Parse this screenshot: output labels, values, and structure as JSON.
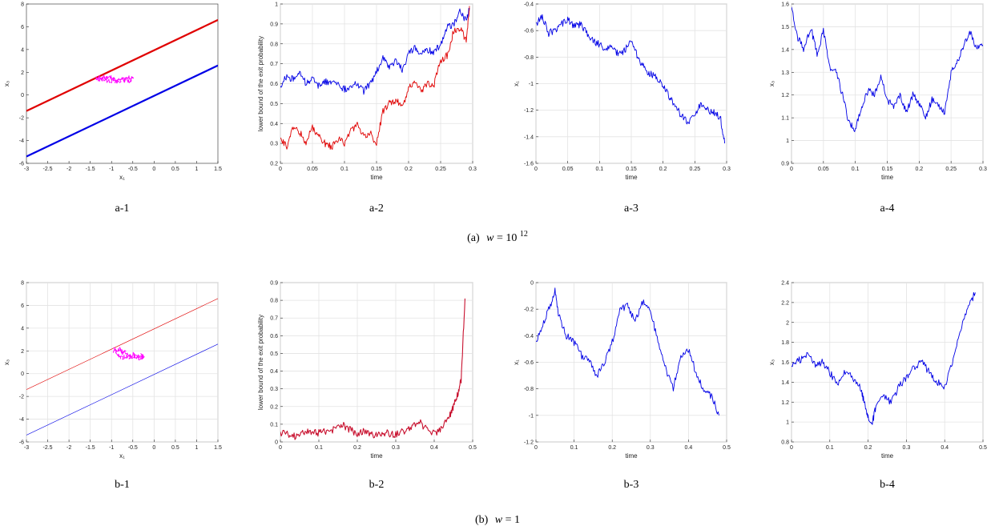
{
  "captions": {
    "a": {
      "prefix": "(a)",
      "var": "w",
      "eq": " = ",
      "base": "10",
      "exp": "12"
    },
    "b": {
      "prefix": "(b)",
      "var": "w",
      "eq": " = ",
      "base": "1",
      "exp": ""
    }
  },
  "colors": {
    "red": "#e00000",
    "blue": "#0000e6",
    "magenta": "#ff00ff",
    "crimson": "#c8102e"
  },
  "chart_data": [
    {
      "id": "a-1",
      "label": "a-1",
      "type": "line",
      "xlabel": "x₁",
      "ylabel": "x₃",
      "xlim": [
        -3,
        1.5
      ],
      "ylim": [
        -6,
        8
      ],
      "xticks": [
        -3,
        -2.5,
        -2,
        -1.5,
        -1,
        -0.5,
        0,
        0.5,
        1,
        1.5
      ],
      "yticks": [
        -6,
        -4,
        -2,
        0,
        2,
        4,
        6,
        8
      ],
      "xticklabels": [
        "-3",
        "-2.5",
        "-2",
        "-1.5",
        "-1",
        "-0.5",
        "0",
        "0.5",
        "1",
        "1.5"
      ],
      "yticklabels": [
        "-6",
        "-4",
        "-2",
        "0",
        "2",
        "4",
        "6",
        "8"
      ],
      "grid": false,
      "lineWidth": 2.2,
      "series": [
        {
          "color": "red",
          "x": [
            -3,
            1.5
          ],
          "y": [
            -1.4,
            6.6
          ]
        },
        {
          "color": "blue",
          "x": [
            -3,
            1.5
          ],
          "y": [
            -5.4,
            2.6
          ]
        },
        {
          "color": "magenta",
          "x": [
            -1.35,
            -1.2,
            -1.1,
            -1.0,
            -0.9,
            -0.8,
            -0.7,
            -0.6,
            -0.5,
            -0.55,
            -0.65,
            -0.8,
            -0.95,
            -1.1,
            -1.25,
            -1.35
          ],
          "y": [
            1.45,
            1.6,
            1.5,
            1.55,
            1.35,
            1.5,
            1.4,
            1.55,
            1.45,
            1.25,
            1.35,
            1.2,
            1.3,
            1.2,
            1.35,
            1.45
          ]
        }
      ]
    },
    {
      "id": "a-2",
      "label": "a-2",
      "type": "line",
      "xlabel": "time",
      "ylabel": "lower bound of the exit probability",
      "xlim": [
        0,
        0.3
      ],
      "ylim": [
        0.2,
        1
      ],
      "xticks": [
        0,
        0.05,
        0.1,
        0.15,
        0.2,
        0.25,
        0.3
      ],
      "yticks": [
        0.2,
        0.3,
        0.4,
        0.5,
        0.6,
        0.7,
        0.8,
        0.9,
        1
      ],
      "xticklabels": [
        "0",
        "0.05",
        "0.1",
        "0.15",
        "0.2",
        "0.25",
        "0.3"
      ],
      "yticklabels": [
        "0.2",
        "0.3",
        "0.4",
        "0.5",
        "0.6",
        "0.7",
        "0.8",
        "0.9",
        "1"
      ],
      "grid": true,
      "lineWidth": 0.9,
      "series": [
        {
          "color": "blue",
          "x": [
            0,
            0.01,
            0.02,
            0.03,
            0.04,
            0.05,
            0.06,
            0.07,
            0.08,
            0.09,
            0.1,
            0.11,
            0.12,
            0.13,
            0.14,
            0.15,
            0.16,
            0.17,
            0.18,
            0.19,
            0.2,
            0.21,
            0.22,
            0.23,
            0.24,
            0.25,
            0.26,
            0.27,
            0.28,
            0.29,
            0.295
          ],
          "y": [
            0.58,
            0.64,
            0.62,
            0.66,
            0.6,
            0.62,
            0.59,
            0.61,
            0.6,
            0.6,
            0.57,
            0.58,
            0.6,
            0.56,
            0.6,
            0.66,
            0.73,
            0.68,
            0.72,
            0.67,
            0.75,
            0.78,
            0.75,
            0.77,
            0.76,
            0.8,
            0.88,
            0.9,
            0.96,
            0.92,
            0.98
          ]
        },
        {
          "color": "red",
          "x": [
            0,
            0.01,
            0.02,
            0.03,
            0.04,
            0.05,
            0.06,
            0.07,
            0.08,
            0.09,
            0.1,
            0.11,
            0.12,
            0.13,
            0.14,
            0.15,
            0.16,
            0.17,
            0.18,
            0.19,
            0.2,
            0.21,
            0.22,
            0.23,
            0.24,
            0.25,
            0.26,
            0.27,
            0.28,
            0.29,
            0.295
          ],
          "y": [
            0.32,
            0.28,
            0.38,
            0.36,
            0.3,
            0.38,
            0.34,
            0.3,
            0.28,
            0.32,
            0.3,
            0.36,
            0.4,
            0.33,
            0.35,
            0.3,
            0.46,
            0.5,
            0.52,
            0.48,
            0.58,
            0.62,
            0.56,
            0.6,
            0.6,
            0.72,
            0.74,
            0.86,
            0.88,
            0.82,
            0.99
          ]
        }
      ]
    },
    {
      "id": "a-3",
      "label": "a-3",
      "type": "line",
      "xlabel": "time",
      "ylabel": "x₁",
      "xlim": [
        0,
        0.3
      ],
      "ylim": [
        -1.6,
        -0.4
      ],
      "xticks": [
        0,
        0.05,
        0.1,
        0.15,
        0.2,
        0.25,
        0.3
      ],
      "yticks": [
        -1.6,
        -1.4,
        -1.2,
        -1,
        -0.8,
        -0.6,
        -0.4
      ],
      "xticklabels": [
        "0",
        "0.05",
        "0.1",
        "0.15",
        "0.2",
        "0.25",
        "0.3"
      ],
      "yticklabels": [
        "-1.6",
        "-1.4",
        "-1.2",
        "-1",
        "-0.8",
        "-0.6",
        "-0.4"
      ],
      "grid": true,
      "lineWidth": 0.9,
      "series": [
        {
          "color": "blue",
          "x": [
            0,
            0.01,
            0.02,
            0.03,
            0.04,
            0.05,
            0.06,
            0.07,
            0.08,
            0.09,
            0.1,
            0.11,
            0.12,
            0.13,
            0.14,
            0.15,
            0.16,
            0.17,
            0.18,
            0.19,
            0.2,
            0.21,
            0.22,
            0.23,
            0.24,
            0.25,
            0.26,
            0.27,
            0.28,
            0.29,
            0.297
          ],
          "y": [
            -0.55,
            -0.5,
            -0.62,
            -0.6,
            -0.55,
            -0.52,
            -0.57,
            -0.55,
            -0.62,
            -0.68,
            -0.7,
            -0.75,
            -0.72,
            -0.78,
            -0.75,
            -0.68,
            -0.8,
            -0.88,
            -0.93,
            -0.95,
            -1.02,
            -1.1,
            -1.18,
            -1.25,
            -1.3,
            -1.22,
            -1.15,
            -1.2,
            -1.22,
            -1.25,
            -1.45
          ]
        }
      ]
    },
    {
      "id": "a-4",
      "label": "a-4",
      "type": "line",
      "xlabel": "time",
      "ylabel": "x₃",
      "xlim": [
        0,
        0.3
      ],
      "ylim": [
        0.9,
        1.6
      ],
      "xticks": [
        0,
        0.05,
        0.1,
        0.15,
        0.2,
        0.25,
        0.3
      ],
      "yticks": [
        0.9,
        1,
        1.1,
        1.2,
        1.3,
        1.4,
        1.5,
        1.6
      ],
      "xticklabels": [
        "0",
        "0.05",
        "0.1",
        "0.15",
        "0.2",
        "0.25",
        "0.3"
      ],
      "yticklabels": [
        "0.9",
        "1",
        "1.1",
        "1.2",
        "1.3",
        "1.4",
        "1.5",
        "1.6"
      ],
      "grid": true,
      "lineWidth": 0.9,
      "series": [
        {
          "color": "blue",
          "x": [
            0,
            0.01,
            0.02,
            0.03,
            0.04,
            0.05,
            0.06,
            0.07,
            0.08,
            0.09,
            0.1,
            0.11,
            0.12,
            0.13,
            0.14,
            0.15,
            0.16,
            0.17,
            0.18,
            0.19,
            0.2,
            0.21,
            0.22,
            0.23,
            0.24,
            0.25,
            0.26,
            0.27,
            0.28,
            0.29,
            0.3
          ],
          "y": [
            1.58,
            1.45,
            1.4,
            1.5,
            1.38,
            1.48,
            1.32,
            1.3,
            1.2,
            1.08,
            1.05,
            1.15,
            1.22,
            1.2,
            1.28,
            1.18,
            1.15,
            1.2,
            1.12,
            1.2,
            1.16,
            1.1,
            1.18,
            1.15,
            1.12,
            1.3,
            1.35,
            1.42,
            1.48,
            1.4,
            1.42
          ]
        }
      ]
    },
    {
      "id": "b-1",
      "label": "b-1",
      "type": "line",
      "xlabel": "x₁",
      "ylabel": "x₃",
      "xlim": [
        -3,
        1.5
      ],
      "ylim": [
        -6,
        8
      ],
      "xticks": [
        -3,
        -2.5,
        -2,
        -1.5,
        -1,
        -0.5,
        0,
        0.5,
        1,
        1.5
      ],
      "yticks": [
        -6,
        -4,
        -2,
        0,
        2,
        4,
        6,
        8
      ],
      "xticklabels": [
        "-3",
        "-2.5",
        "-2",
        "-1.5",
        "-1",
        "-0.5",
        "0",
        "0.5",
        "1",
        "1.5"
      ],
      "yticklabels": [
        "-6",
        "-4",
        "-2",
        "0",
        "2",
        "4",
        "6",
        "8"
      ],
      "grid": true,
      "lineWidth": 0.6,
      "series": [
        {
          "color": "red",
          "x": [
            -3,
            1.5
          ],
          "y": [
            -1.4,
            6.6
          ]
        },
        {
          "color": "blue",
          "x": [
            -3,
            1.5
          ],
          "y": [
            -5.4,
            2.6
          ]
        },
        {
          "color": "magenta",
          "x": [
            -0.95,
            -0.85,
            -0.8,
            -0.75,
            -0.7,
            -0.6,
            -0.5,
            -0.4,
            -0.3,
            -0.25,
            -0.35,
            -0.45,
            -0.55,
            -0.65,
            -0.75,
            -0.85,
            -0.95
          ],
          "y": [
            2.2,
            2.05,
            2.15,
            1.8,
            1.95,
            1.6,
            1.7,
            1.5,
            1.65,
            1.45,
            1.3,
            1.5,
            1.35,
            1.55,
            1.45,
            1.7,
            2.0
          ]
        }
      ]
    },
    {
      "id": "b-2",
      "label": "b-2",
      "type": "line",
      "xlabel": "time",
      "ylabel": "lower bound of the exit probability",
      "xlim": [
        0,
        0.5
      ],
      "ylim": [
        0,
        0.9
      ],
      "xticks": [
        0,
        0.1,
        0.2,
        0.3,
        0.4,
        0.5
      ],
      "yticks": [
        0,
        0.1,
        0.2,
        0.3,
        0.4,
        0.5,
        0.6,
        0.7,
        0.8,
        0.9
      ],
      "xticklabels": [
        "0",
        "0.1",
        "0.2",
        "0.3",
        "0.4",
        "0.5"
      ],
      "yticklabels": [
        "0",
        "0.1",
        "0.2",
        "0.3",
        "0.4",
        "0.5",
        "0.6",
        "0.7",
        "0.8",
        "0.9"
      ],
      "grid": true,
      "lineWidth": 1.1,
      "series": [
        {
          "color": "crimson",
          "x": [
            0,
            0.02,
            0.04,
            0.06,
            0.08,
            0.1,
            0.12,
            0.14,
            0.16,
            0.18,
            0.2,
            0.22,
            0.24,
            0.26,
            0.28,
            0.3,
            0.32,
            0.34,
            0.36,
            0.38,
            0.4,
            0.42,
            0.44,
            0.45,
            0.46,
            0.47,
            0.48
          ],
          "y": [
            0.05,
            0.04,
            0.03,
            0.05,
            0.06,
            0.05,
            0.06,
            0.07,
            0.1,
            0.07,
            0.05,
            0.06,
            0.04,
            0.04,
            0.05,
            0.04,
            0.06,
            0.08,
            0.12,
            0.07,
            0.05,
            0.07,
            0.15,
            0.2,
            0.26,
            0.35,
            0.81
          ]
        }
      ]
    },
    {
      "id": "b-3",
      "label": "b-3",
      "type": "line",
      "xlabel": "time",
      "ylabel": "x₁",
      "xlim": [
        0,
        0.5
      ],
      "ylim": [
        -1.2,
        0
      ],
      "xticks": [
        0,
        0.1,
        0.2,
        0.3,
        0.4,
        0.5
      ],
      "yticks": [
        -1.2,
        -1,
        -0.8,
        -0.6,
        -0.4,
        -0.2,
        0
      ],
      "xticklabels": [
        "0",
        "0.1",
        "0.2",
        "0.3",
        "0.4",
        "0.5"
      ],
      "yticklabels": [
        "-1.2",
        "-1",
        "-0.8",
        "-0.6",
        "-0.4",
        "-0.2",
        "0"
      ],
      "grid": true,
      "lineWidth": 0.9,
      "series": [
        {
          "color": "blue",
          "x": [
            0,
            0.02,
            0.04,
            0.05,
            0.06,
            0.08,
            0.1,
            0.12,
            0.14,
            0.16,
            0.18,
            0.2,
            0.22,
            0.24,
            0.26,
            0.28,
            0.3,
            0.32,
            0.34,
            0.36,
            0.38,
            0.4,
            0.42,
            0.44,
            0.46,
            0.48
          ],
          "y": [
            -0.45,
            -0.3,
            -0.15,
            -0.05,
            -0.25,
            -0.4,
            -0.45,
            -0.55,
            -0.58,
            -0.7,
            -0.6,
            -0.45,
            -0.2,
            -0.18,
            -0.28,
            -0.15,
            -0.2,
            -0.45,
            -0.65,
            -0.8,
            -0.55,
            -0.5,
            -0.68,
            -0.82,
            -0.85,
            -1.0
          ]
        }
      ]
    },
    {
      "id": "b-4",
      "label": "b-4",
      "type": "line",
      "xlabel": "time",
      "ylabel": "x₃",
      "xlim": [
        0,
        0.5
      ],
      "ylim": [
        0.8,
        2.4
      ],
      "xticks": [
        0,
        0.1,
        0.2,
        0.3,
        0.4,
        0.5
      ],
      "yticks": [
        0.8,
        1,
        1.2,
        1.4,
        1.6,
        1.8,
        2,
        2.2,
        2.4
      ],
      "xticklabels": [
        "0",
        "0.1",
        "0.2",
        "0.3",
        "0.4",
        "0.5"
      ],
      "yticklabels": [
        "0.8",
        "1",
        "1.2",
        "1.4",
        "1.6",
        "1.8",
        "2",
        "2.2",
        "2.4"
      ],
      "grid": true,
      "lineWidth": 0.9,
      "series": [
        {
          "color": "blue",
          "x": [
            0,
            0.02,
            0.04,
            0.06,
            0.08,
            0.1,
            0.12,
            0.14,
            0.16,
            0.18,
            0.19,
            0.2,
            0.21,
            0.22,
            0.24,
            0.26,
            0.28,
            0.3,
            0.32,
            0.34,
            0.36,
            0.38,
            0.4,
            0.42,
            0.44,
            0.46,
            0.48
          ],
          "y": [
            1.55,
            1.62,
            1.68,
            1.58,
            1.6,
            1.5,
            1.38,
            1.5,
            1.45,
            1.35,
            1.2,
            1.05,
            0.97,
            1.15,
            1.25,
            1.2,
            1.35,
            1.45,
            1.55,
            1.6,
            1.5,
            1.4,
            1.35,
            1.6,
            1.9,
            2.15,
            2.3
          ]
        }
      ]
    }
  ]
}
